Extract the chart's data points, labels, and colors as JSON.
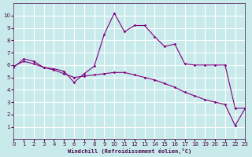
{
  "xlabel": "Windchill (Refroidissement éolien,°C)",
  "bg_color": "#c8eaea",
  "grid_color": "#ffffff",
  "line_color": "#800080",
  "y_jagged": [
    5.8,
    6.5,
    6.3,
    5.8,
    5.7,
    5.5,
    4.6,
    5.3,
    5.9,
    8.5,
    10.2,
    8.7,
    9.2,
    9.2,
    8.3,
    7.5,
    7.7,
    6.1,
    6.0,
    6.0,
    6.0,
    6.0,
    2.5,
    2.5
  ],
  "y_diagonal": [
    5.9,
    6.3,
    6.1,
    5.8,
    5.6,
    5.3,
    5.0,
    5.1,
    5.2,
    5.3,
    5.4,
    5.4,
    5.2,
    5.0,
    4.8,
    4.5,
    4.2,
    3.8,
    3.5,
    3.2,
    3.0,
    2.8,
    1.1,
    2.5
  ],
  "ylim": [
    0,
    11
  ],
  "xlim": [
    0,
    23
  ],
  "yticks": [
    1,
    2,
    3,
    4,
    5,
    6,
    7,
    8,
    9,
    10
  ],
  "xticks": [
    0,
    1,
    2,
    3,
    4,
    5,
    6,
    7,
    8,
    9,
    10,
    11,
    12,
    13,
    14,
    15,
    16,
    17,
    18,
    19,
    20,
    21,
    22,
    23
  ]
}
